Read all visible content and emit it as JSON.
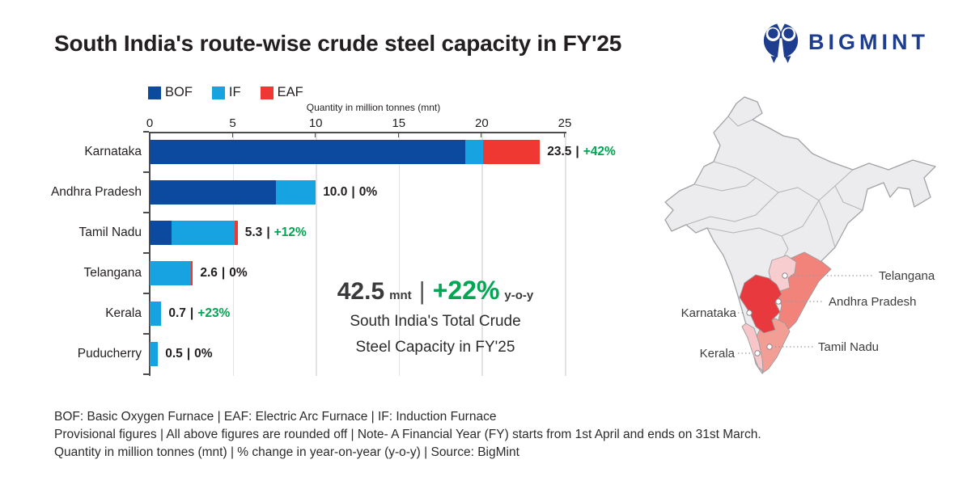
{
  "title": "South India's route-wise crude steel capacity in FY'25",
  "brand": {
    "name": "BIGMINT"
  },
  "chart_data": {
    "type": "bar",
    "orientation": "horizontal",
    "stacked": true,
    "axis_title": "Quantity in million tonnes (mnt)",
    "xlim": [
      0,
      25
    ],
    "x_ticks": [
      0,
      5,
      10,
      15,
      20,
      25
    ],
    "grid": "vertical",
    "legend_position": "top",
    "legend": [
      {
        "name": "BOF",
        "color": "#0b4a9f"
      },
      {
        "name": "IF",
        "color": "#17a3e1"
      },
      {
        "name": "EAF",
        "color": "#ee3831"
      }
    ],
    "categories": [
      "Karnataka",
      "Andhra Pradesh",
      "Tamil Nadu",
      "Telangana",
      "Kerala",
      "Puducherry"
    ],
    "series": [
      {
        "name": "BOF",
        "values": [
          19.0,
          7.6,
          1.3,
          0,
          0,
          0
        ]
      },
      {
        "name": "IF",
        "values": [
          1.1,
          2.4,
          3.8,
          2.5,
          0.7,
          0.5
        ]
      },
      {
        "name": "EAF",
        "values": [
          3.4,
          0,
          0.2,
          0.1,
          0,
          0
        ]
      }
    ],
    "totals": [
      "23.5",
      "10.0",
      "5.3",
      "2.6",
      "0.7",
      "0.5"
    ],
    "changes": [
      "+42%",
      "0%",
      "+12%",
      "0%",
      "+23%",
      "0%"
    ],
    "change_positive": [
      true,
      false,
      true,
      false,
      true,
      false
    ],
    "value_separator": "|"
  },
  "callout": {
    "value": "42.5",
    "unit": "mnt",
    "separator": "|",
    "change": "+22%",
    "change_unit": "y-o-y",
    "line2": "South India's Total Crude",
    "line3": "Steel Capacity in FY'25"
  },
  "map": {
    "labels": [
      {
        "text": "Telangana"
      },
      {
        "text": "Andhra Pradesh"
      },
      {
        "text": "Karnataka"
      },
      {
        "text": "Tamil Nadu"
      },
      {
        "text": "Kerala"
      }
    ],
    "colors": {
      "base": "#ececee",
      "border": "#a2a2a5",
      "karnataka": "#e8393f",
      "andhra_pradesh": "#f2837a",
      "tamil_nadu": "#f29e95",
      "telangana": "#f8cdd0",
      "kerala": "#f8c6c9"
    }
  },
  "footnotes": [
    "BOF: Basic Oxygen Furnace  |  EAF: Electric Arc Furnace  |  IF: Induction Furnace",
    "Provisional figures  |  All above figures are rounded off  |  Note- A Financial Year (FY) starts from 1st April and ends on 31st March.",
    "Quantity in million tonnes (mnt)  |  % change in year-on-year (y-o-y)  |  Source: BigMint"
  ],
  "colors": {
    "positive_change": "#00a651",
    "text_dark": "#231f20",
    "brand_navy": "#1e3d8f",
    "axis": "#4c4c4e",
    "gridline": "#e3e3e5"
  }
}
